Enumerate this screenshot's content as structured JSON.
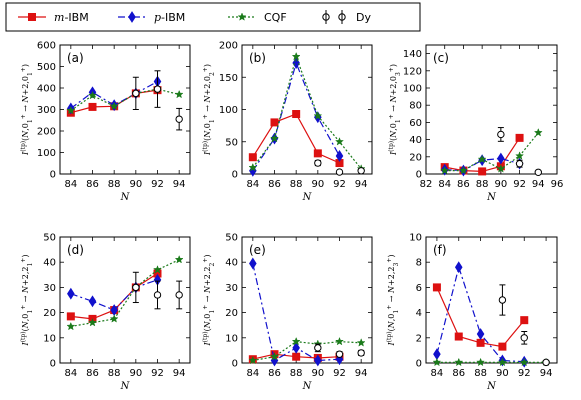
{
  "legend": {
    "placement": "top",
    "entries": [
      {
        "key": "mIBM",
        "prefix": "m",
        "suffix": "-IBM",
        "color": "#dd1111",
        "marker": "square",
        "line": "solid"
      },
      {
        "key": "pIBM",
        "prefix": "p",
        "suffix": "-IBM",
        "color": "#1111cc",
        "marker": "diamond",
        "line": "dashdot"
      },
      {
        "key": "CQF",
        "prefix": "",
        "suffix": "CQF",
        "color": "#1a7a1a",
        "marker": "star",
        "line": "dotted"
      },
      {
        "key": "Dy",
        "prefix": "",
        "suffix": "Dy",
        "color": "#000000",
        "marker": "circle-open",
        "line": "none"
      }
    ]
  },
  "chart_data": [
    {
      "type": "line",
      "label": "(a)",
      "grid": false,
      "xlabel": "N",
      "ylabel": "I(tp)(N,0₁⁺→N+2,0₁⁺)",
      "ylabel_parts": {
        "target_state": "0",
        "target_index": "1"
      },
      "xlim": [
        83,
        95
      ],
      "xticks": [
        84,
        86,
        88,
        90,
        92,
        94
      ],
      "ylim": [
        0,
        600
      ],
      "yticks": [
        0,
        100,
        200,
        300,
        400,
        500,
        600
      ],
      "series": [
        {
          "name": "m-IBM",
          "x": [
            84,
            86,
            88,
            90,
            92
          ],
          "y": [
            285,
            312,
            315,
            375,
            390
          ]
        },
        {
          "name": "p-IBM",
          "x": [
            84,
            86,
            88,
            90,
            92
          ],
          "y": [
            305,
            380,
            320,
            375,
            430
          ]
        },
        {
          "name": "CQF",
          "x": [
            84,
            86,
            88,
            90,
            92,
            94
          ],
          "y": [
            295,
            365,
            315,
            375,
            395,
            370
          ]
        },
        {
          "name": "Dy",
          "x": [
            90,
            92,
            94
          ],
          "y": [
            375,
            395,
            255
          ],
          "yerr": [
            75,
            85,
            50
          ]
        }
      ]
    },
    {
      "type": "line",
      "label": "(b)",
      "grid": false,
      "xlabel": "N",
      "ylabel": "I(tp)(N,0₁⁺→N+2,0₂⁺)",
      "ylabel_parts": {
        "target_state": "0",
        "target_index": "2"
      },
      "xlim": [
        83,
        95
      ],
      "xticks": [
        84,
        86,
        88,
        90,
        92,
        94
      ],
      "ylim": [
        0,
        200
      ],
      "yticks": [
        0,
        50,
        100,
        150,
        200
      ],
      "series": [
        {
          "name": "m-IBM",
          "x": [
            84,
            86,
            88,
            90,
            92
          ],
          "y": [
            26,
            80,
            93,
            32,
            17
          ]
        },
        {
          "name": "p-IBM",
          "x": [
            84,
            86,
            88,
            90,
            92
          ],
          "y": [
            5,
            55,
            172,
            88,
            28
          ]
        },
        {
          "name": "CQF",
          "x": [
            84,
            86,
            88,
            90,
            92,
            94
          ],
          "y": [
            10,
            55,
            182,
            90,
            50,
            8
          ]
        },
        {
          "name": "Dy",
          "x": [
            90,
            92,
            94
          ],
          "y": [
            17,
            3,
            5
          ],
          "yerr": [
            4,
            2,
            2
          ]
        }
      ]
    },
    {
      "type": "line",
      "label": "(c)",
      "grid": false,
      "xlabel": "N",
      "ylabel": "I(tp)(N,0₁⁺→N+2,0₃⁺)",
      "ylabel_parts": {
        "target_state": "0",
        "target_index": "3"
      },
      "xlim": [
        82,
        96
      ],
      "xticks": [
        82,
        84,
        86,
        88,
        90,
        92,
        94,
        96
      ],
      "ylim": [
        0,
        150
      ],
      "yticks": [
        0,
        20,
        40,
        60,
        80,
        100,
        120,
        140
      ],
      "series": [
        {
          "name": "m-IBM",
          "x": [
            84,
            86,
            88,
            90,
            92
          ],
          "y": [
            8,
            4,
            3,
            9,
            42
          ]
        },
        {
          "name": "p-IBM",
          "x": [
            84,
            86,
            88,
            90,
            92
          ],
          "y": [
            5,
            4,
            16,
            18,
            12
          ]
        },
        {
          "name": "CQF",
          "x": [
            84,
            86,
            88,
            90,
            92,
            94
          ],
          "y": [
            4,
            4,
            17,
            6,
            21,
            48
          ]
        },
        {
          "name": "Dy",
          "x": [
            90,
            92,
            94
          ],
          "y": [
            46,
            12,
            2
          ],
          "yerr": [
            8,
            4,
            1
          ]
        }
      ]
    },
    {
      "type": "line",
      "label": "(d)",
      "grid": false,
      "xlabel": "N",
      "ylabel": "I(tp)(N,0₁⁺→N+2,2₁⁺)",
      "ylabel_parts": {
        "target_state": "2",
        "target_index": "1"
      },
      "xlim": [
        83,
        95
      ],
      "xticks": [
        84,
        86,
        88,
        90,
        92,
        94
      ],
      "ylim": [
        0,
        50
      ],
      "yticks": [
        0,
        10,
        20,
        30,
        40,
        50
      ],
      "series": [
        {
          "name": "m-IBM",
          "x": [
            84,
            86,
            88,
            90,
            92
          ],
          "y": [
            18.5,
            17.5,
            21,
            30,
            35.5
          ]
        },
        {
          "name": "p-IBM",
          "x": [
            84,
            86,
            88,
            90,
            92
          ],
          "y": [
            27.5,
            24.5,
            21,
            30,
            33
          ]
        },
        {
          "name": "CQF",
          "x": [
            84,
            86,
            88,
            90,
            92,
            94
          ],
          "y": [
            14.5,
            16,
            17.5,
            30,
            37,
            41
          ]
        },
        {
          "name": "Dy",
          "x": [
            90,
            92,
            94
          ],
          "y": [
            30,
            27,
            27
          ],
          "yerr": [
            6,
            5.5,
            5.5
          ]
        }
      ]
    },
    {
      "type": "line",
      "label": "(e)",
      "grid": false,
      "xlabel": "N",
      "ylabel": "I(tp)(N,0₁⁺→N+2,2₂⁺)",
      "ylabel_parts": {
        "target_state": "2",
        "target_index": "2"
      },
      "xlim": [
        83,
        95
      ],
      "xticks": [
        84,
        86,
        88,
        90,
        92,
        94
      ],
      "ylim": [
        0,
        50
      ],
      "yticks": [
        0,
        10,
        20,
        30,
        40,
        50
      ],
      "series": [
        {
          "name": "m-IBM",
          "x": [
            84,
            86,
            88,
            90,
            92
          ],
          "y": [
            1.5,
            3.5,
            2.5,
            2,
            2.5
          ]
        },
        {
          "name": "p-IBM",
          "x": [
            84,
            86,
            88,
            90,
            92
          ],
          "y": [
            39.5,
            1,
            6,
            1,
            1.5
          ]
        },
        {
          "name": "CQF",
          "x": [
            84,
            86,
            88,
            90,
            92,
            94
          ],
          "y": [
            1,
            2.5,
            8.5,
            7.5,
            8.5,
            8
          ]
        },
        {
          "name": "Dy",
          "x": [
            90,
            92,
            94
          ],
          "y": [
            6,
            3.5,
            4
          ],
          "yerr": [
            1.5,
            1,
            1
          ]
        }
      ]
    },
    {
      "type": "line",
      "label": "(f)",
      "grid": false,
      "xlabel": "N",
      "ylabel": "I(tp)(N,0₁⁺→N+2,2₃⁺)",
      "ylabel_parts": {
        "target_state": "2",
        "target_index": "3"
      },
      "xlim": [
        83,
        95
      ],
      "xticks": [
        84,
        86,
        88,
        90,
        92,
        94
      ],
      "ylim": [
        0,
        10
      ],
      "yticks": [
        0,
        2,
        4,
        6,
        8,
        10
      ],
      "series": [
        {
          "name": "m-IBM",
          "x": [
            84,
            86,
            88,
            90,
            92
          ],
          "y": [
            6,
            2.1,
            1.6,
            1.3,
            3.4
          ]
        },
        {
          "name": "p-IBM",
          "x": [
            84,
            86,
            88,
            90,
            92
          ],
          "y": [
            0.7,
            7.6,
            2.3,
            0.2,
            0.1
          ]
        },
        {
          "name": "CQF",
          "x": [
            84,
            86,
            88,
            90,
            92,
            94
          ],
          "y": [
            0.05,
            0.05,
            0.05,
            0.05,
            0.05,
            0.05
          ]
        },
        {
          "name": "Dy",
          "x": [
            90,
            92,
            94
          ],
          "y": [
            5,
            2,
            0.05
          ],
          "yerr": [
            1.2,
            0.5,
            0
          ]
        }
      ]
    }
  ]
}
